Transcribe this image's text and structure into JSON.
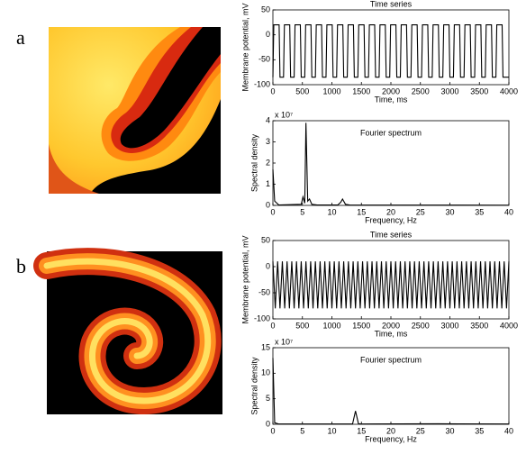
{
  "panel_labels": [
    "a",
    "b"
  ],
  "chart_data": [
    {
      "type": "line",
      "title": "Time series",
      "xlabel": "Time, ms",
      "ylabel": "Membrane potential, mV",
      "color": "#000000",
      "x": [
        0,
        15,
        105,
        120,
        180,
        195,
        285,
        300,
        360,
        375,
        465,
        480,
        540,
        555,
        645,
        660,
        720,
        735,
        825,
        840,
        900,
        915,
        1005,
        1020,
        1080,
        1095,
        1185,
        1200,
        1260,
        1275,
        1365,
        1380,
        1440,
        1455,
        1545,
        1560,
        1620,
        1635,
        1725,
        1740,
        1800,
        1815,
        1905,
        1920,
        1980,
        1995,
        2085,
        2100,
        2160,
        2175,
        2265,
        2280,
        2340,
        2355,
        2445,
        2460,
        2520,
        2535,
        2625,
        2640,
        2700,
        2715,
        2805,
        2820,
        2880,
        2895,
        2985,
        3000,
        3060,
        3075,
        3165,
        3180,
        3240,
        3255,
        3345,
        3360,
        3420,
        3435,
        3525,
        3540,
        3600,
        3615,
        3705,
        3720,
        3780,
        3795,
        3885,
        3900,
        4000
      ],
      "values": [
        -85,
        20,
        20,
        -85,
        -85,
        20,
        20,
        -85,
        -85,
        20,
        20,
        -85,
        -85,
        20,
        20,
        -85,
        -85,
        20,
        20,
        -85,
        -85,
        20,
        20,
        -85,
        -85,
        20,
        20,
        -85,
        -85,
        20,
        20,
        -85,
        -85,
        20,
        20,
        -85,
        -85,
        20,
        20,
        -85,
        -85,
        20,
        20,
        -85,
        -85,
        20,
        20,
        -85,
        -85,
        20,
        20,
        -85,
        -85,
        20,
        20,
        -85,
        -85,
        20,
        20,
        -85,
        -85,
        20,
        20,
        -85,
        -85,
        20,
        20,
        -85,
        -85,
        20,
        20,
        -85,
        -85,
        20,
        20,
        -85,
        -85,
        20,
        20,
        -85,
        -85,
        20,
        20,
        -85,
        -85,
        20,
        20,
        -85,
        -85
      ],
      "xlim": [
        0,
        4000
      ],
      "ylim": [
        -100,
        50
      ],
      "xticks": [
        0,
        500,
        1000,
        1500,
        2000,
        2500,
        3000,
        3500,
        4000
      ],
      "yticks": [
        -100,
        -50,
        0,
        50
      ]
    },
    {
      "type": "line",
      "title": "Fourier spectrum",
      "xlabel": "Frequency, Hz",
      "ylabel": "Spectral density",
      "y_multiplier": "x 10⁷",
      "color": "#000000",
      "x": [
        0,
        0.3,
        1,
        4.8,
        5.1,
        5.4,
        5.6,
        5.9,
        6.2,
        6.6,
        7.5,
        11,
        11.5,
        11.8,
        12.3,
        13,
        40
      ],
      "values": [
        1.7,
        0.2,
        0.02,
        0.05,
        0.4,
        0.1,
        3.9,
        0.2,
        0.3,
        0.05,
        0.02,
        0.02,
        0.15,
        0.3,
        0.05,
        0.02,
        0.01
      ],
      "xlim": [
        0,
        40
      ],
      "ylim": [
        0,
        4
      ],
      "xticks": [
        0,
        5,
        10,
        15,
        20,
        25,
        30,
        35,
        40
      ],
      "yticks": [
        0,
        1,
        2,
        3,
        4
      ]
    },
    {
      "type": "line",
      "title": "Time series",
      "xlabel": "Time, ms",
      "ylabel": "Membrane potential, mV",
      "color": "#000000",
      "x": [
        0,
        40,
        80,
        120,
        160,
        200,
        240,
        280,
        320,
        360,
        400,
        440,
        480,
        520,
        560,
        600,
        640,
        680,
        720,
        760,
        800,
        840,
        880,
        920,
        960,
        1000,
        1040,
        1080,
        1120,
        1160,
        1200,
        1240,
        1280,
        1320,
        1360,
        1400,
        1440,
        1480,
        1520,
        1560,
        1600,
        1640,
        1680,
        1720,
        1760,
        1800,
        1840,
        1880,
        1920,
        1960,
        2000,
        2040,
        2080,
        2120,
        2160,
        2200,
        2240,
        2280,
        2320,
        2360,
        2400,
        2440,
        2480,
        2520,
        2560,
        2600,
        2640,
        2680,
        2720,
        2760,
        2800,
        2840,
        2880,
        2920,
        2960,
        3000,
        3040,
        3080,
        3120,
        3160,
        3200,
        3240,
        3280,
        3320,
        3360,
        3400,
        3440,
        3480,
        3520,
        3560,
        3600,
        3640,
        3680,
        3720,
        3760,
        3800,
        3840,
        3880,
        3920,
        3960,
        4000
      ],
      "values": [
        10,
        -80,
        10,
        -80,
        10,
        -80,
        10,
        -80,
        10,
        -80,
        10,
        -80,
        10,
        -80,
        10,
        -80,
        10,
        -80,
        10,
        -80,
        10,
        -80,
        10,
        -80,
        10,
        -80,
        10,
        -80,
        10,
        -80,
        10,
        -80,
        10,
        -80,
        10,
        -80,
        10,
        -80,
        10,
        -80,
        10,
        -80,
        10,
        -80,
        10,
        -80,
        10,
        -80,
        10,
        -80,
        10,
        -80,
        10,
        -80,
        10,
        -80,
        10,
        -80,
        10,
        -80,
        10,
        -80,
        10,
        -80,
        10,
        -80,
        10,
        -80,
        10,
        -80,
        10,
        -80,
        10,
        -80,
        10,
        -80,
        10,
        -80,
        10,
        -80,
        10,
        -80,
        10,
        -80,
        10,
        -80,
        10,
        -80,
        10,
        -80,
        10,
        -80,
        10,
        -80,
        10,
        -80,
        10,
        -80,
        10,
        -80,
        10
      ],
      "xlim": [
        0,
        4000
      ],
      "ylim": [
        -100,
        50
      ],
      "xticks": [
        0,
        500,
        1000,
        1500,
        2000,
        2500,
        3000,
        3500,
        4000
      ],
      "yticks": [
        -100,
        -50,
        0,
        50
      ]
    },
    {
      "type": "line",
      "title": "Fourier spectrum",
      "xlabel": "Frequency, Hz",
      "ylabel": "Spectral density",
      "y_multiplier": "x 10⁷",
      "color": "#000000",
      "x": [
        0,
        0.3,
        1,
        13.5,
        14,
        14.5,
        15,
        28,
        40
      ],
      "values": [
        13,
        0.3,
        0.05,
        0.05,
        2.6,
        0.1,
        0.05,
        0.1,
        0.05
      ],
      "xlim": [
        0,
        40
      ],
      "ylim": [
        0,
        15
      ],
      "xticks": [
        0,
        5,
        10,
        15,
        20,
        25,
        30,
        35,
        40
      ],
      "yticks": [
        0,
        5,
        10,
        15
      ]
    }
  ]
}
